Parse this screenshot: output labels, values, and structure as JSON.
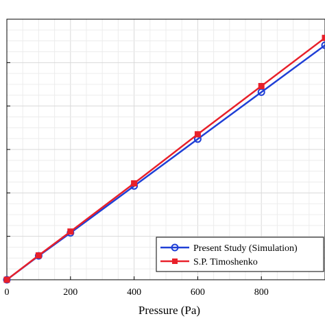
{
  "chart_data": {
    "type": "line",
    "xlabel": "Pressure (Pa)",
    "ylabel": "",
    "xlim": [
      0,
      1000
    ],
    "ylim": [
      0,
      6
    ],
    "x_ticks": [
      0,
      200,
      400,
      600,
      800
    ],
    "x_tick_labels": [
      "0",
      "200",
      "400",
      "600",
      "800"
    ],
    "y_ticks": [
      0,
      1,
      2,
      3,
      4,
      5,
      6
    ],
    "grid": true,
    "legend_position": "bottom-right",
    "series": [
      {
        "name": "Present Study (Simulation)",
        "color": "#1f3fd6",
        "marker": "circle",
        "x": [
          0,
          100,
          200,
          400,
          600,
          800,
          1000
        ],
        "y": [
          0,
          0.55,
          1.08,
          2.16,
          3.24,
          4.32,
          5.4
        ]
      },
      {
        "name": "S.P. Timoshenko",
        "color": "#e8202a",
        "marker": "square",
        "x": [
          0,
          100,
          200,
          400,
          600,
          800,
          1000
        ],
        "y": [
          0,
          0.56,
          1.11,
          2.22,
          3.35,
          4.46,
          5.57
        ]
      }
    ]
  }
}
